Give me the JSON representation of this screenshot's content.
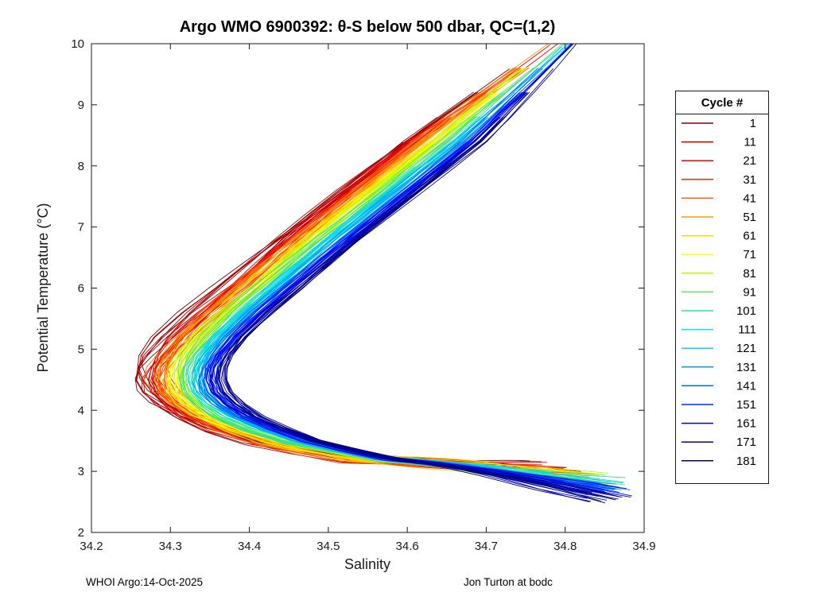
{
  "footer": {
    "left": "WHOI Argo:14-Oct-2025",
    "right": "Jon Turton at bodc"
  },
  "chart_data": {
    "type": "line",
    "title": "Argo WMO 6900392: θ-S below 500 dbar,  QC=(1,2)",
    "xlabel": "Salinity",
    "ylabel": "Potential Temperature (°C)",
    "xlim": [
      34.2,
      34.9
    ],
    "ylim": [
      2,
      10
    ],
    "xticks": [
      34.2,
      34.3,
      34.4,
      34.5,
      34.6,
      34.7,
      34.8,
      34.9
    ],
    "yticks": [
      2,
      3,
      4,
      5,
      6,
      7,
      8,
      9,
      10
    ],
    "grid": false,
    "legend_position": "right-outside",
    "legend_title": "Cycle #",
    "axis_color": "#1a1a1a",
    "base_profile": [
      [
        10.0,
        34.795
      ],
      [
        9.6,
        34.758
      ],
      [
        9.2,
        34.72
      ],
      [
        8.8,
        34.682
      ],
      [
        8.4,
        34.645
      ],
      [
        8.0,
        34.606
      ],
      [
        7.6,
        34.567
      ],
      [
        7.2,
        34.528
      ],
      [
        6.8,
        34.489
      ],
      [
        6.4,
        34.452
      ],
      [
        6.0,
        34.415
      ],
      [
        5.6,
        34.378
      ],
      [
        5.2,
        34.345
      ],
      [
        4.9,
        34.326
      ],
      [
        4.7,
        34.318
      ],
      [
        4.5,
        34.316
      ],
      [
        4.3,
        34.322
      ],
      [
        4.1,
        34.338
      ],
      [
        3.9,
        34.362
      ],
      [
        3.7,
        34.398
      ],
      [
        3.5,
        34.445
      ],
      [
        3.35,
        34.5
      ],
      [
        3.2,
        34.56
      ]
    ],
    "series": [
      {
        "label": "1",
        "color": "#800000",
        "mid_shift": -0.048,
        "spread": 0.02,
        "theta_spread": 0.115,
        "end_sal": 34.77,
        "end_theta": 3.0
      },
      {
        "label": "11",
        "color": "#B80000",
        "mid_shift": -0.0426,
        "spread": 0.0194,
        "theta_spread": 0.11,
        "end_sal": 34.779,
        "end_theta": 3.0
      },
      {
        "label": "21",
        "color": "#F10000",
        "mid_shift": -0.0371,
        "spread": 0.0188,
        "theta_spread": 0.106,
        "end_sal": 34.788,
        "end_theta": 2.99
      },
      {
        "label": "31",
        "color": "#FF2A00",
        "mid_shift": -0.0317,
        "spread": 0.0182,
        "theta_spread": 0.101,
        "end_sal": 34.796,
        "end_theta": 2.97
      },
      {
        "label": "41",
        "color": "#FF6300",
        "mid_shift": -0.0262,
        "spread": 0.0176,
        "theta_spread": 0.096,
        "end_sal": 34.804,
        "end_theta": 2.96
      },
      {
        "label": "51",
        "color": "#FF9C00",
        "mid_shift": -0.0208,
        "spread": 0.0169,
        "theta_spread": 0.091,
        "end_sal": 34.811,
        "end_theta": 2.94
      },
      {
        "label": "61",
        "color": "#FFD400",
        "mid_shift": -0.0153,
        "spread": 0.0163,
        "theta_spread": 0.087,
        "end_sal": 34.817,
        "end_theta": 2.92
      },
      {
        "label": "71",
        "color": "#FFFF00",
        "mid_shift": -0.0099,
        "spread": 0.0157,
        "theta_spread": 0.082,
        "end_sal": 34.823,
        "end_theta": 2.9
      },
      {
        "label": "81",
        "color": "#B8FF00",
        "mid_shift": -0.0044,
        "spread": 0.0151,
        "theta_spread": 0.077,
        "end_sal": 34.829,
        "end_theta": 2.88
      },
      {
        "label": "91",
        "color": "#57E857",
        "mid_shift": 0.001,
        "spread": 0.0145,
        "theta_spread": 0.073,
        "end_sal": 34.834,
        "end_theta": 2.85
      },
      {
        "label": "101",
        "color": "#2EDDA0",
        "mid_shift": 0.0064,
        "spread": 0.0139,
        "theta_spread": 0.068,
        "end_sal": 34.838,
        "end_theta": 2.82
      },
      {
        "label": "111",
        "color": "#12E0D8",
        "mid_shift": 0.0119,
        "spread": 0.0133,
        "theta_spread": 0.063,
        "end_sal": 34.842,
        "end_theta": 2.8
      },
      {
        "label": "121",
        "color": "#00D4FF",
        "mid_shift": 0.0173,
        "spread": 0.0127,
        "theta_spread": 0.058,
        "end_sal": 34.846,
        "end_theta": 2.77
      },
      {
        "label": "131",
        "color": "#009CFF",
        "mid_shift": 0.0228,
        "spread": 0.0121,
        "theta_spread": 0.054,
        "end_sal": 34.848,
        "end_theta": 2.73
      },
      {
        "label": "141",
        "color": "#0063FF",
        "mid_shift": 0.0282,
        "spread": 0.0114,
        "theta_spread": 0.049,
        "end_sal": 34.851,
        "end_theta": 2.7
      },
      {
        "label": "151",
        "color": "#002AFF",
        "mid_shift": 0.0337,
        "spread": 0.0108,
        "theta_spread": 0.044,
        "end_sal": 34.853,
        "end_theta": 2.66
      },
      {
        "label": "161",
        "color": "#0000F1",
        "mid_shift": 0.0391,
        "spread": 0.0102,
        "theta_spread": 0.039,
        "end_sal": 34.854,
        "end_theta": 2.63
      },
      {
        "label": "171",
        "color": "#0000B8",
        "mid_shift": 0.0446,
        "spread": 0.0096,
        "theta_spread": 0.035,
        "end_sal": 34.855,
        "end_theta": 2.59
      },
      {
        "label": "181",
        "color": "#000080",
        "mid_shift": 0.05,
        "spread": 0.009,
        "theta_spread": 0.03,
        "end_sal": 34.855,
        "end_theta": 2.55
      }
    ]
  }
}
